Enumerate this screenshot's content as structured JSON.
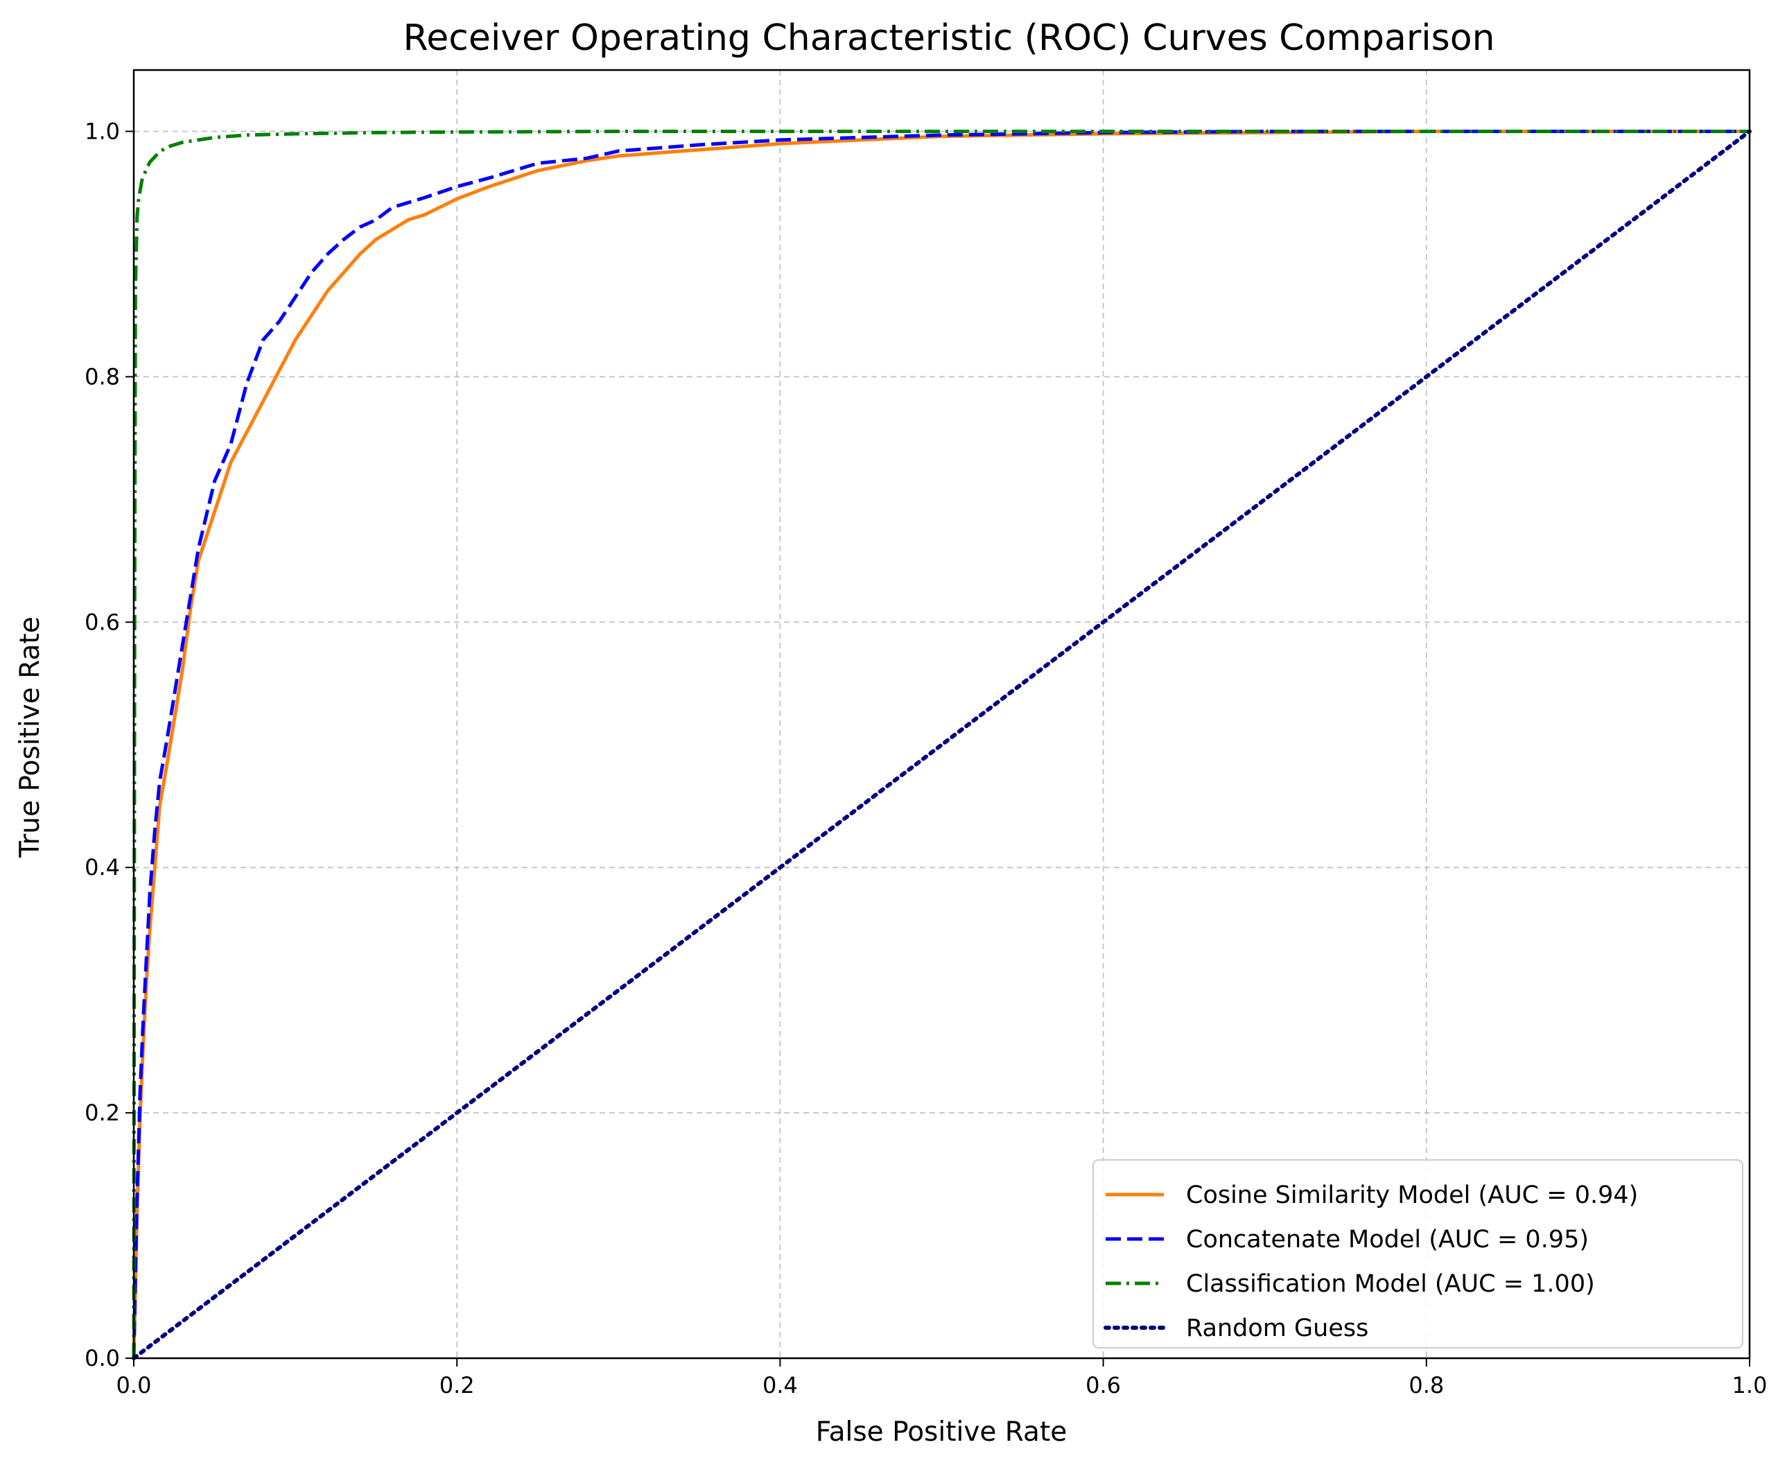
{
  "chart_data": {
    "type": "line",
    "title": "Receiver Operating Characteristic (ROC) Curves Comparison",
    "xlabel": "False Positive Rate",
    "ylabel": "True Positive Rate",
    "xlim": [
      0.0,
      1.0
    ],
    "ylim": [
      0.0,
      1.05
    ],
    "xticks": [
      "0.0",
      "0.2",
      "0.4",
      "0.6",
      "0.8",
      "1.0"
    ],
    "yticks": [
      "0.0",
      "0.2",
      "0.4",
      "0.6",
      "0.8",
      "1.0"
    ],
    "grid": true,
    "legend_position": "lower-right",
    "series": [
      {
        "name": "Cosine Similarity Model (AUC = 0.94)",
        "color": "#ff7f0e",
        "style": "solid",
        "x": [
          0.0,
          0.002,
          0.004,
          0.006,
          0.008,
          0.01,
          0.013,
          0.016,
          0.02,
          0.025,
          0.03,
          0.035,
          0.04,
          0.05,
          0.06,
          0.07,
          0.08,
          0.09,
          0.1,
          0.11,
          0.12,
          0.13,
          0.14,
          0.15,
          0.16,
          0.17,
          0.18,
          0.2,
          0.22,
          0.25,
          0.28,
          0.3,
          0.35,
          0.4,
          0.45,
          0.5,
          0.6,
          0.7,
          0.8,
          0.9,
          1.0
        ],
        "y": [
          0.0,
          0.12,
          0.2,
          0.26,
          0.31,
          0.35,
          0.4,
          0.45,
          0.48,
          0.52,
          0.56,
          0.61,
          0.65,
          0.69,
          0.73,
          0.755,
          0.78,
          0.805,
          0.83,
          0.85,
          0.87,
          0.885,
          0.9,
          0.912,
          0.92,
          0.928,
          0.932,
          0.945,
          0.955,
          0.968,
          0.976,
          0.98,
          0.985,
          0.99,
          0.993,
          0.996,
          0.998,
          0.999,
          1.0,
          1.0,
          1.0
        ]
      },
      {
        "name": "Concatenate Model (AUC = 0.95)",
        "color": "#0000ff",
        "style": "dashed",
        "x": [
          0.0,
          0.002,
          0.004,
          0.006,
          0.008,
          0.01,
          0.013,
          0.016,
          0.02,
          0.025,
          0.03,
          0.035,
          0.04,
          0.05,
          0.06,
          0.07,
          0.08,
          0.09,
          0.1,
          0.11,
          0.12,
          0.13,
          0.14,
          0.15,
          0.16,
          0.17,
          0.18,
          0.2,
          0.22,
          0.25,
          0.28,
          0.3,
          0.35,
          0.4,
          0.45,
          0.5,
          0.6,
          0.7,
          0.8,
          0.9,
          1.0
        ],
        "y": [
          0.0,
          0.13,
          0.22,
          0.28,
          0.33,
          0.38,
          0.43,
          0.47,
          0.5,
          0.54,
          0.58,
          0.62,
          0.66,
          0.715,
          0.745,
          0.795,
          0.83,
          0.845,
          0.865,
          0.885,
          0.9,
          0.912,
          0.922,
          0.928,
          0.938,
          0.942,
          0.946,
          0.955,
          0.962,
          0.974,
          0.978,
          0.984,
          0.989,
          0.993,
          0.995,
          0.997,
          0.999,
          1.0,
          1.0,
          1.0,
          1.0
        ]
      },
      {
        "name": "Classification Model (AUC = 1.00)",
        "color": "#008000",
        "style": "dashdot",
        "x": [
          0.0,
          0.0005,
          0.001,
          0.002,
          0.003,
          0.005,
          0.008,
          0.01,
          0.015,
          0.02,
          0.03,
          0.05,
          0.07,
          0.1,
          0.15,
          0.2,
          0.3,
          0.4,
          0.5,
          0.6,
          0.7,
          0.8,
          0.9,
          1.0
        ],
        "y": [
          0.0,
          0.6,
          0.87,
          0.93,
          0.945,
          0.96,
          0.97,
          0.975,
          0.982,
          0.987,
          0.991,
          0.995,
          0.997,
          0.998,
          0.999,
          0.9995,
          1.0,
          1.0,
          1.0,
          1.0,
          1.0,
          1.0,
          1.0,
          1.0
        ]
      },
      {
        "name": "Random Guess",
        "color": "#000080",
        "style": "dotted",
        "x": [
          0.0,
          1.0
        ],
        "y": [
          0.0,
          1.0
        ]
      }
    ]
  }
}
